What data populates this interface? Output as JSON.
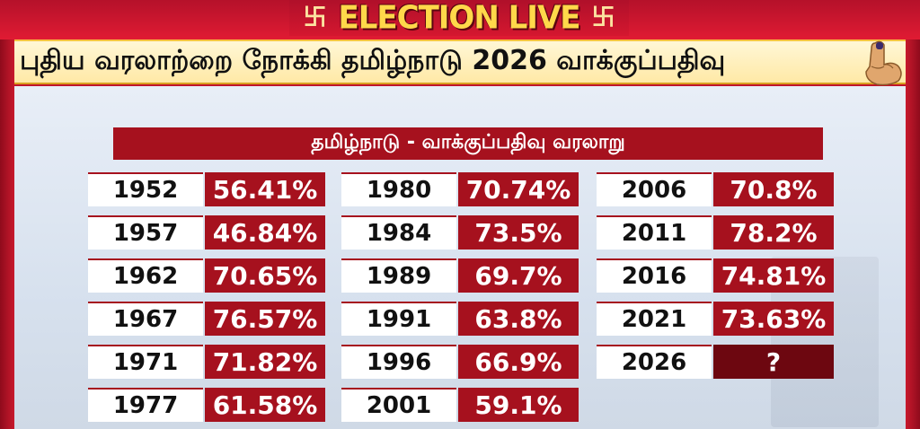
{
  "header": {
    "live_title": "ELECTION LIVE",
    "headline": "புதிய வரலாற்றை நோக்கி தமிழ்நாடு 2026 வாக்குப்பதிவு",
    "left_symbol_icon": "swastik-symbol-icon",
    "right_symbol_icon": "swastik-symbol-icon",
    "finger_icon": "inked-finger-icon"
  },
  "table": {
    "title": "தமிழ்நாடு - வாக்குப்பதிவு வரலாறு",
    "columns": [
      [
        {
          "year": "1952",
          "turnout": "56.41%"
        },
        {
          "year": "1957",
          "turnout": "46.84%"
        },
        {
          "year": "1962",
          "turnout": "70.65%"
        },
        {
          "year": "1967",
          "turnout": "76.57%"
        },
        {
          "year": "1971",
          "turnout": "71.82%"
        },
        {
          "year": "1977",
          "turnout": "61.58%"
        }
      ],
      [
        {
          "year": "1980",
          "turnout": "70.74%"
        },
        {
          "year": "1984",
          "turnout": "73.5%"
        },
        {
          "year": "1989",
          "turnout": "69.7%"
        },
        {
          "year": "1991",
          "turnout": "63.8%"
        },
        {
          "year": "1996",
          "turnout": "66.9%"
        },
        {
          "year": "2001",
          "turnout": "59.1%"
        }
      ],
      [
        {
          "year": "2006",
          "turnout": "70.8%"
        },
        {
          "year": "2011",
          "turnout": "78.2%"
        },
        {
          "year": "2016",
          "turnout": "74.81%"
        },
        {
          "year": "2021",
          "turnout": "73.63%"
        },
        {
          "year": "2026",
          "turnout": "?"
        }
      ]
    ]
  },
  "colors": {
    "brand_red": "#a6111e",
    "banner_yellow": "#ffd84a",
    "headline_bg": "#fff7d6"
  }
}
